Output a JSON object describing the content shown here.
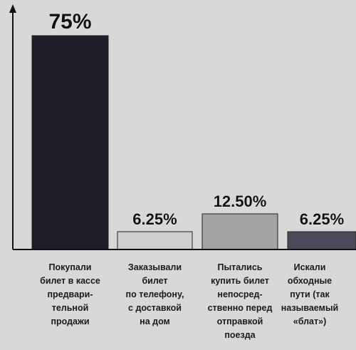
{
  "chart_data": {
    "type": "bar",
    "categories": [
      "Покупали\nбилет в кассе\nпредвари-\nтельной\nпродажи",
      "Заказывали\nбилет\nпо телефону,\nс доставкой\nна дом",
      "Пытались\nкупить билет\nнепосред-\nственно перед\nотправкой\nпоезда",
      "Искали\nобходные\nпути (так\nназываемый\n«блат»)"
    ],
    "values": [
      75,
      6.25,
      12.5,
      6.25
    ],
    "value_labels": [
      "75%",
      "6.25%",
      "12.50%",
      "6.25%"
    ],
    "colors": [
      "#1d1d28",
      "#cfcfcf",
      "#a3a3a3",
      "#4a4a58"
    ],
    "ylim": [
      0,
      85
    ]
  }
}
